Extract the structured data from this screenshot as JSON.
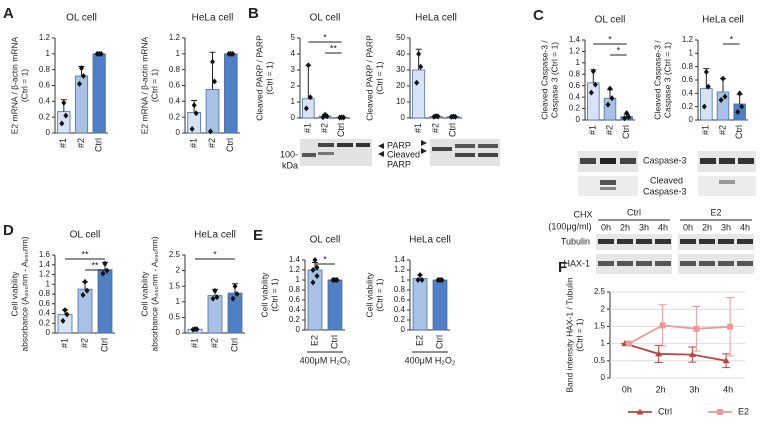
{
  "chart_data": [
    {
      "type": "bar",
      "panel": "A",
      "title": "OL cell",
      "ylabel": [
        "E2 mRNA / β-actin mRNA",
        "(Ctrl = 1)"
      ],
      "categories": [
        "#1",
        "#2",
        "Ctrl"
      ],
      "colors": [
        "#d7e3f4",
        "#a8c2e6",
        "#4f7fc4"
      ],
      "values": [
        0.27,
        0.72,
        1.0
      ],
      "errors": [
        0.15,
        0.12,
        0
      ],
      "points": [
        [
          0.38,
          0.22,
          0.12
        ],
        [
          0.82,
          0.72,
          0.62
        ],
        [
          1,
          1,
          1
        ]
      ],
      "ylim": [
        0,
        1.2
      ],
      "yticks": [
        0,
        0.2,
        0.4,
        0.6,
        0.8,
        1,
        1.2
      ]
    },
    {
      "type": "bar",
      "title": "HeLa cell",
      "ylabel": [
        "E2 mRNA / β-actin mRNA",
        "(Ctrl = 1)"
      ],
      "categories": [
        "#1",
        "#2",
        "Ctrl"
      ],
      "colors": [
        "#d7e3f4",
        "#a8c2e6",
        "#4f7fc4"
      ],
      "values": [
        0.26,
        0.55,
        1.0
      ],
      "errors": [
        0.15,
        0.47,
        0
      ],
      "points": [
        [
          0.35,
          0.25,
          0.05
        ],
        [
          0.9,
          0.65,
          0.02
        ],
        [
          1,
          1,
          1
        ]
      ],
      "ylim": [
        0,
        1.2
      ],
      "yticks": [
        0,
        0.2,
        0.4,
        0.6,
        0.8,
        1,
        1.2
      ]
    },
    {
      "type": "bar",
      "panel": "B",
      "title": "OL cell",
      "ylabel": [
        "Cleaved PARP / PARP",
        "(Ctrl = 1)"
      ],
      "categories": [
        "#1",
        "#2",
        "Ctrl"
      ],
      "colors": [
        "#d7e3f4",
        "#a8c2e6",
        "#4f7fc4"
      ],
      "values": [
        1.2,
        0.12,
        0.04
      ],
      "errors": [
        2.1,
        0.1,
        0.04
      ],
      "points": [
        [
          3.3,
          1.3,
          0.6
        ],
        [
          0.2,
          0.1,
          0.05
        ],
        [
          0.05,
          0.03,
          0.02
        ]
      ],
      "ylim": [
        0,
        5
      ],
      "yticks": [
        0,
        1,
        2,
        3,
        4,
        5
      ],
      "significance": [
        {
          "between": [
            "#1",
            "Ctrl"
          ],
          "label": "*"
        },
        {
          "between": [
            "#2",
            "Ctrl"
          ],
          "label": "**"
        }
      ]
    },
    {
      "type": "bar",
      "title": "HeLa cell",
      "ylabel": [
        "Cleaved PARP / PARP",
        "(Ctrl = 1)"
      ],
      "categories": [
        "#1",
        "#2",
        "Ctrl"
      ],
      "colors": [
        "#d7e3f4",
        "#a8c2e6",
        "#4f7fc4"
      ],
      "values": [
        30,
        1,
        0.8
      ],
      "errors": [
        13,
        0.5,
        0.3
      ],
      "points": [
        [
          40,
          32,
          22
        ],
        [
          1.2,
          1,
          0.8
        ],
        [
          0.9,
          0.8,
          0.7
        ]
      ],
      "ylim": [
        0,
        50
      ],
      "yticks": [
        0,
        10,
        20,
        30,
        40,
        50
      ]
    },
    {
      "type": "bar",
      "panel": "C",
      "title": "OL cell",
      "ylabel": [
        "Cleaved Caspase-3 /",
        "Caspase 3 (Ctrl = 1)"
      ],
      "categories": [
        "#1",
        "#2",
        "Ctrl"
      ],
      "colors": [
        "#d7e3f4",
        "#a8c2e6",
        "#4f7fc4"
      ],
      "values": [
        0.65,
        0.38,
        0.06
      ],
      "errors": [
        0.23,
        0.15,
        0.04
      ],
      "points": [
        [
          0.85,
          0.62,
          0.48
        ],
        [
          0.55,
          0.38,
          0.27
        ],
        [
          0.12,
          0.05,
          0.03
        ]
      ],
      "ylim": [
        0,
        1.4
      ],
      "yticks": [
        0,
        0.2,
        0.4,
        0.6,
        0.8,
        1,
        1.2,
        1.4
      ],
      "significance": [
        {
          "between": [
            "#1",
            "Ctrl"
          ],
          "label": "*"
        },
        {
          "between": [
            "#2",
            "Ctrl"
          ],
          "label": "*"
        }
      ]
    },
    {
      "type": "bar",
      "title": "HeLa cell",
      "ylabel": [
        "Cleaved Caspase-3 /",
        "Caspase 3 (Ctrl = 1)"
      ],
      "categories": [
        "#1",
        "#2",
        "Ctrl"
      ],
      "colors": [
        "#d7e3f4",
        "#a8c2e6",
        "#4f7fc4"
      ],
      "values": [
        0.47,
        0.42,
        0.24
      ],
      "errors": [
        0.3,
        0.2,
        0.14
      ],
      "points": [
        [
          0.72,
          0.5,
          0.2
        ],
        [
          0.62,
          0.35,
          0.3
        ],
        [
          0.4,
          0.2,
          0.12
        ]
      ],
      "ylim": [
        0,
        1.2
      ],
      "yticks": [
        0,
        0.2,
        0.4,
        0.6,
        0.8,
        1,
        1.2
      ],
      "significance": [
        {
          "between": [
            "#2",
            "Ctrl"
          ],
          "label": "*"
        }
      ]
    },
    {
      "type": "bar",
      "panel": "D",
      "title": "OL cell",
      "ylabel": [
        "Cell viability",
        "absorbance (A₄₅₀nm - A₆₉₀nm)"
      ],
      "categories": [
        "#1",
        "#2",
        "Ctrl"
      ],
      "colors": [
        "#d7e3f4",
        "#a8c2e6",
        "#4f7fc4"
      ],
      "values": [
        0.38,
        0.9,
        1.3
      ],
      "errors": [
        0.1,
        0.15,
        0.15
      ],
      "points": [
        [
          0.47,
          0.38,
          0.25
        ],
        [
          1.05,
          0.87,
          0.78
        ],
        [
          1.42,
          1.28,
          1.22
        ]
      ],
      "ylim": [
        0,
        1.6
      ],
      "yticks": [
        0,
        0.2,
        0.4,
        0.6,
        0.8,
        1,
        1.2,
        1.4,
        1.6
      ],
      "significance": [
        {
          "between": [
            "#1",
            "Ctrl"
          ],
          "label": "**"
        },
        {
          "between": [
            "#2",
            "Ctrl"
          ],
          "label": "**"
        }
      ]
    },
    {
      "type": "bar",
      "title": "HeLa cell",
      "ylabel": [
        "Cell viability",
        "absorbance (A₄₅₀nm - A₆₉₀nm)"
      ],
      "categories": [
        "#1",
        "#2",
        "Ctrl"
      ],
      "colors": [
        "#d7e3f4",
        "#a8c2e6",
        "#4f7fc4"
      ],
      "values": [
        0.12,
        1.2,
        1.28
      ],
      "errors": [
        0.03,
        0.2,
        0.3
      ],
      "points": [
        [
          0.13,
          0.12,
          0.11
        ],
        [
          1.35,
          1.15,
          1.1
        ],
        [
          1.5,
          1.25,
          1.1
        ]
      ],
      "ylim": [
        0,
        2.5
      ],
      "yticks": [
        0,
        0.5,
        1,
        1.5,
        2,
        2.5
      ],
      "significance": [
        {
          "between": [
            "#1",
            "Ctrl"
          ],
          "label": "*"
        }
      ]
    },
    {
      "type": "bar",
      "panel": "E",
      "title": "OL cell",
      "ylabel": [
        "Cell viability",
        "(Ctrl = 1)"
      ],
      "categories": [
        "E2",
        "Ctrl"
      ],
      "colors": [
        "#a8c2e6",
        "#4f7fc4"
      ],
      "values": [
        1.2,
        1.0
      ],
      "errors": [
        0.15,
        0
      ],
      "points": [
        [
          1.4,
          1.25,
          1.2,
          1.08,
          0.95
        ],
        [
          1,
          1,
          1,
          1,
          1
        ]
      ],
      "ylim": [
        0,
        1.4
      ],
      "yticks": [
        0,
        0.2,
        0.4,
        0.6,
        0.8,
        1,
        1.2,
        1.4
      ],
      "xlabel": "400μM H₂O₂",
      "significance": [
        {
          "between": [
            "E2",
            "Ctrl"
          ],
          "label": "*"
        }
      ]
    },
    {
      "type": "bar",
      "title": "HeLa cell",
      "ylabel": [
        "Cell viability",
        "(Ctrl = 1)"
      ],
      "categories": [
        "E2",
        "Ctrl"
      ],
      "colors": [
        "#a8c2e6",
        "#4f7fc4"
      ],
      "values": [
        1.03,
        1.0
      ],
      "errors": [
        0.07,
        0
      ],
      "points": [
        [
          1.1,
          1.0,
          1.0
        ],
        [
          1,
          1,
          1
        ]
      ],
      "ylim": [
        0,
        1.4
      ],
      "yticks": [
        0,
        0.2,
        0.4,
        0.6,
        0.8,
        1,
        1.2,
        1.4
      ],
      "xlabel": "400μM H₂O₂"
    },
    {
      "type": "line",
      "panel": "F",
      "ylabel": [
        "Band intensity HAX-1 / Tubulin",
        "(Ctrl = 1)"
      ],
      "categories": [
        "0h",
        "2h",
        "3h",
        "4h"
      ],
      "series": [
        {
          "name": "Ctrl",
          "color": "#b9473f",
          "values": [
            1,
            0.7,
            0.68,
            0.5
          ],
          "errors": [
            0,
            0.25,
            0.22,
            0.2
          ]
        },
        {
          "name": "E2",
          "color": "#e79a98",
          "values": [
            1,
            1.53,
            1.43,
            1.49
          ],
          "errors": [
            0,
            0.6,
            0.65,
            0.85
          ]
        }
      ],
      "ylim": [
        0,
        2.5
      ],
      "yticks": [
        0,
        0.5,
        1,
        1.5,
        2,
        2.5
      ],
      "grid": true,
      "legend": "bottom"
    }
  ],
  "blots": {
    "B": {
      "bands": [
        "PARP",
        [
          "Cleaved",
          "PARP"
        ]
      ],
      "marker": "100-",
      "unit": "kDa"
    },
    "C": {
      "bands": [
        "Caspase-3",
        [
          "Cleaved",
          "Caspase-3"
        ]
      ]
    },
    "F": {
      "treatment": [
        "CHX",
        "(100μg/ml)"
      ],
      "groups": [
        "Ctrl",
        "E2"
      ],
      "times": [
        "0h",
        "2h",
        "3h",
        "4h"
      ],
      "rows": [
        "Tubulin",
        "HAX-1"
      ]
    }
  }
}
